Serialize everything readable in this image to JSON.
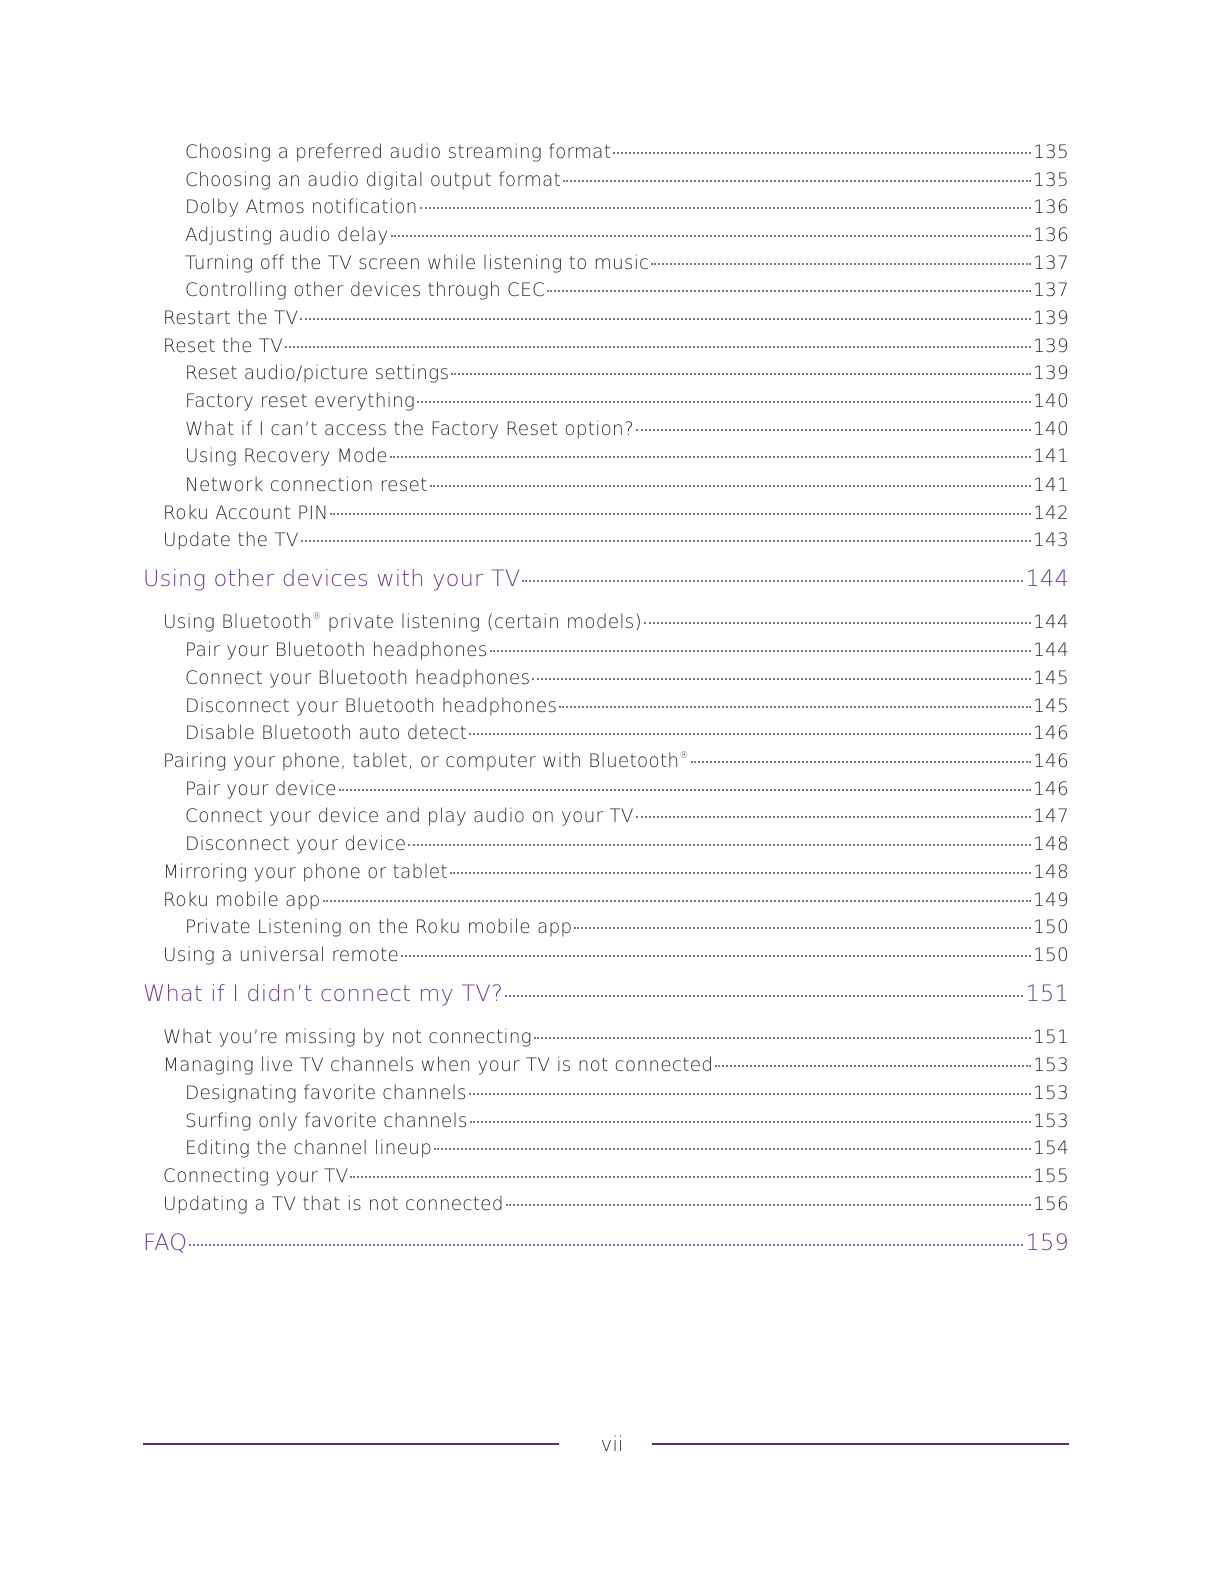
{
  "toc": [
    {
      "level": 2,
      "text": "Choosing a preferred audio streaming format",
      "page": "135"
    },
    {
      "level": 2,
      "text": "Choosing an audio digital output format",
      "page": "135"
    },
    {
      "level": 2,
      "text": "Dolby Atmos notification",
      "page": "136"
    },
    {
      "level": 2,
      "text": "Adjusting audio delay",
      "page": "136"
    },
    {
      "level": 2,
      "text": "Turning off the TV screen while listening to music",
      "page": "137"
    },
    {
      "level": 2,
      "text": "Controlling other devices through CEC",
      "page": "137"
    },
    {
      "level": 1,
      "text": "Restart the TV",
      "page": "139"
    },
    {
      "level": 1,
      "text": "Reset the TV",
      "page": "139"
    },
    {
      "level": 2,
      "text": "Reset audio/picture settings",
      "page": "139"
    },
    {
      "level": 2,
      "text": "Factory reset everything",
      "page": "140"
    },
    {
      "level": 2,
      "text": "What if I can’t access the Factory Reset option?",
      "page": "140"
    },
    {
      "level": 2,
      "text": "Using Recovery Mode",
      "page": "141"
    },
    {
      "level": 2,
      "text": "Network connection reset",
      "page": "141"
    },
    {
      "level": 1,
      "text": "Roku Account PIN",
      "page": "142"
    },
    {
      "level": 1,
      "text": "Update the TV",
      "page": "143"
    },
    {
      "level": 0,
      "text": "Using other devices with your TV",
      "page": "144"
    },
    {
      "level": 1,
      "text": "Using Bluetooth",
      "sup": "®",
      "text_after": " private listening (certain models)",
      "page": "144"
    },
    {
      "level": 2,
      "text": "Pair your Bluetooth headphones",
      "page": "144"
    },
    {
      "level": 2,
      "text": "Connect your Bluetooth headphones",
      "page": "145"
    },
    {
      "level": 2,
      "text": "Disconnect your Bluetooth headphones",
      "page": "145"
    },
    {
      "level": 2,
      "text": "Disable Bluetooth auto detect",
      "page": "146"
    },
    {
      "level": 1,
      "text": "Pairing your phone, tablet, or computer with Bluetooth",
      "sup": "®",
      "text_after": "",
      "page": "146"
    },
    {
      "level": 2,
      "text": "Pair your device",
      "page": "146"
    },
    {
      "level": 2,
      "text": "Connect your device and play audio on your TV",
      "page": "147"
    },
    {
      "level": 2,
      "text": "Disconnect your device",
      "page": "148"
    },
    {
      "level": 1,
      "text": "Mirroring your phone or tablet",
      "page": "148"
    },
    {
      "level": 1,
      "text": "Roku mobile app",
      "page": "149"
    },
    {
      "level": 2,
      "text": "Private Listening on the Roku mobile app",
      "page": "150"
    },
    {
      "level": 1,
      "text": "Using a universal remote",
      "page": "150"
    },
    {
      "level": 0,
      "text": "What if I didn’t connect my TV?",
      "page": "151"
    },
    {
      "level": 1,
      "text": "What you’re missing by not connecting",
      "page": "151"
    },
    {
      "level": 1,
      "text": "Managing live TV channels when your TV is not connected",
      "page": "153"
    },
    {
      "level": 2,
      "text": "Designating favorite channels",
      "page": "153"
    },
    {
      "level": 2,
      "text": "Surfing only favorite channels",
      "page": "153"
    },
    {
      "level": 2,
      "text": "Editing the channel lineup",
      "page": "154"
    },
    {
      "level": 1,
      "text": "Connecting your TV",
      "page": "155"
    },
    {
      "level": 1,
      "text": "Updating a TV that is not connected",
      "page": "156"
    },
    {
      "level": 0,
      "text": "FAQ",
      "page": "159"
    }
  ],
  "footer": {
    "page_number": "vii"
  },
  "colors": {
    "heading": "#6f3c97",
    "rule": "#5b2d73",
    "text": "#2b2b2b"
  }
}
